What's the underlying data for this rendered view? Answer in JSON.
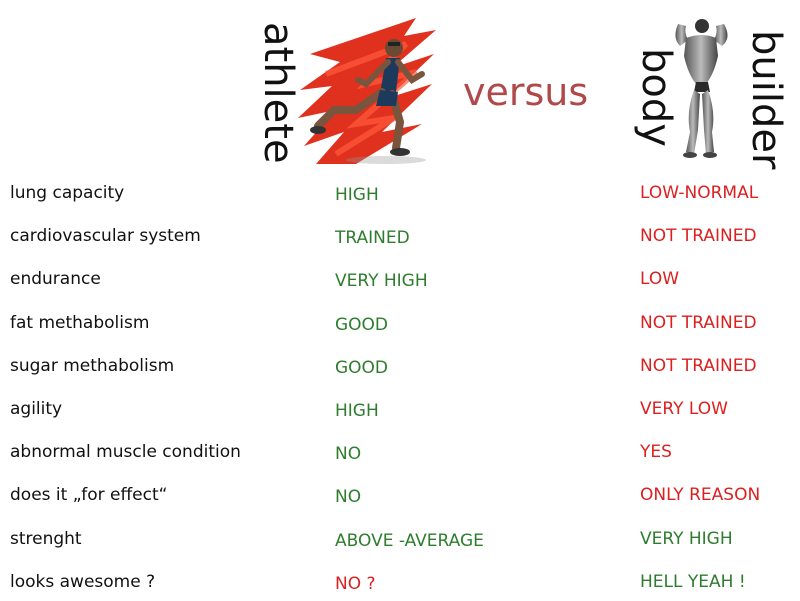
{
  "header": {
    "athlete": "athlete",
    "versus": "versus",
    "body": "body",
    "builder": "builder"
  },
  "colors": {
    "green": "#2e7d2e",
    "red": "#dd1f1f",
    "versus": "#b04a4a"
  },
  "rows": [
    {
      "label": "lung capacity",
      "athlete": "HIGH",
      "athlete_color": "green",
      "bodybuilder": "LOW-NORMAL",
      "bodybuilder_color": "red"
    },
    {
      "label": "cardiovascular system",
      "athlete": "TRAINED",
      "athlete_color": "green",
      "bodybuilder": "NOT TRAINED",
      "bodybuilder_color": "red"
    },
    {
      "label": "endurance",
      "athlete": "VERY HIGH",
      "athlete_color": "green",
      "bodybuilder": "LOW",
      "bodybuilder_color": "red"
    },
    {
      "label": "fat methabolism",
      "athlete": "GOOD",
      "athlete_color": "green",
      "bodybuilder": "NOT TRAINED",
      "bodybuilder_color": "red"
    },
    {
      "label": "sugar methabolism",
      "athlete": "GOOD",
      "athlete_color": "green",
      "bodybuilder": "NOT TRAINED",
      "bodybuilder_color": "red"
    },
    {
      "label": "agility",
      "athlete": "HIGH",
      "athlete_color": "green",
      "bodybuilder": "VERY LOW",
      "bodybuilder_color": "red"
    },
    {
      "label": "abnormal muscle condition",
      "athlete": "NO",
      "athlete_color": "green",
      "bodybuilder": "YES",
      "bodybuilder_color": "red"
    },
    {
      "label": "does it „for effect“",
      "athlete": "NO",
      "athlete_color": "green",
      "bodybuilder": "ONLY REASON",
      "bodybuilder_color": "red"
    },
    {
      "label": "strenght",
      "athlete": "ABOVE -AVERAGE",
      "athlete_color": "green",
      "bodybuilder": "VERY HIGH",
      "bodybuilder_color": "green"
    },
    {
      "label": "looks awesome ?",
      "athlete": "NO ?",
      "athlete_color": "red",
      "bodybuilder": "HELL YEAH !",
      "bodybuilder_color": "green"
    }
  ]
}
